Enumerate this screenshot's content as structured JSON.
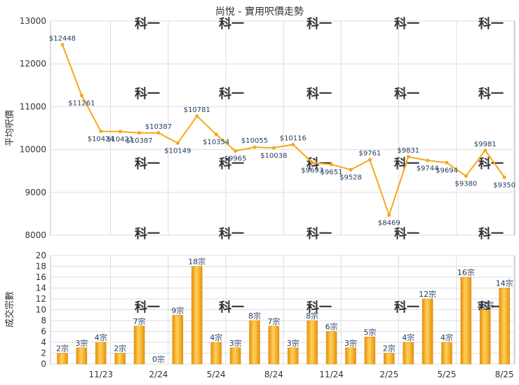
{
  "chart_data": [
    {
      "type": "line",
      "title": "尚悅 - 實用呎價走勢",
      "ylabel": "平均呎價",
      "ylim": [
        8000,
        13000
      ],
      "yticks": [
        8000,
        9000,
        10000,
        11000,
        12000,
        13000
      ],
      "grid": true,
      "color": "#f5a81c",
      "series": [
        {
          "values": [
            12448,
            11261,
            10424,
            10421,
            10387,
            10387,
            10149,
            10781,
            10354,
            9965,
            10055,
            10038,
            10116,
            9693,
            9651,
            9528,
            9761,
            8469,
            9831,
            9744,
            9694,
            9380,
            9981,
            9350
          ],
          "labels": [
            "$12448",
            "$11261",
            "$10424",
            "$10421",
            "$10387",
            "$10387",
            "$10149",
            "$10781",
            "$10354",
            "$9965",
            "$10055",
            "$10038",
            "$10116",
            "$9693",
            "$9651",
            "$9528",
            "$9761",
            "$8469",
            "$9831",
            "$9744",
            "$9694",
            "$9380",
            "$9981",
            "$9350"
          ]
        }
      ]
    },
    {
      "type": "bar",
      "ylabel": "成交宗數",
      "ylim": [
        0,
        20
      ],
      "yticks": [
        0,
        2,
        4,
        6,
        8,
        10,
        12,
        14,
        16,
        18,
        20
      ],
      "grid": true,
      "color": "#f5a81c",
      "xtick_labels": [
        "11/23",
        "2/24",
        "5/24",
        "8/24",
        "11/24",
        "2/25",
        "5/25",
        "8/25"
      ],
      "values": [
        2,
        3,
        4,
        2,
        7,
        0,
        9,
        18,
        4,
        3,
        8,
        7,
        3,
        8,
        6,
        3,
        5,
        2,
        4,
        12,
        4,
        16,
        10,
        14
      ],
      "labels": [
        "2宗",
        "3宗",
        "4宗",
        "2宗",
        "7宗",
        "0宗",
        "9宗",
        "18宗",
        "4宗",
        "3宗",
        "8宗",
        "7宗",
        "3宗",
        "8宗",
        "6宗",
        "3宗",
        "5宗",
        "2宗",
        "4宗",
        "12宗",
        "4宗",
        "16宗",
        "10宗",
        "14宗"
      ]
    }
  ]
}
